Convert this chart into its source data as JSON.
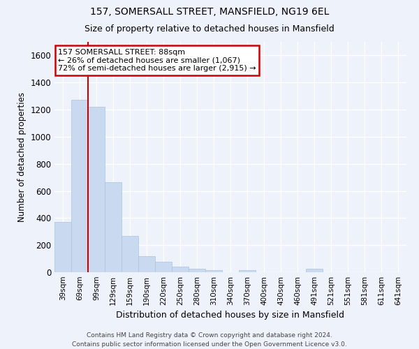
{
  "title": "157, SOMERSALL STREET, MANSFIELD, NG19 6EL",
  "subtitle": "Size of property relative to detached houses in Mansfield",
  "xlabel": "Distribution of detached houses by size in Mansfield",
  "ylabel": "Number of detached properties",
  "bar_color": "#c9daf0",
  "bar_edge_color": "#a8c4e0",
  "vline_color": "#cc0000",
  "vline_linewidth": 1.5,
  "vline_x": 1.5,
  "annotation_text": "157 SOMERSALL STREET: 88sqm\n← 26% of detached houses are smaller (1,067)\n72% of semi-detached houses are larger (2,915) →",
  "annotation_box_edgecolor": "#cc0000",
  "annotation_fill_color": "white",
  "categories": [
    "39sqm",
    "69sqm",
    "99sqm",
    "129sqm",
    "159sqm",
    "190sqm",
    "220sqm",
    "250sqm",
    "280sqm",
    "310sqm",
    "340sqm",
    "370sqm",
    "400sqm",
    "430sqm",
    "460sqm",
    "491sqm",
    "521sqm",
    "551sqm",
    "581sqm",
    "611sqm",
    "641sqm"
  ],
  "values": [
    370,
    1270,
    1220,
    665,
    270,
    120,
    75,
    40,
    25,
    15,
    0,
    15,
    0,
    0,
    0,
    25,
    0,
    0,
    0,
    0,
    0
  ],
  "ylim": [
    0,
    1700
  ],
  "yticks": [
    0,
    200,
    400,
    600,
    800,
    1000,
    1200,
    1400,
    1600
  ],
  "footer": "Contains HM Land Registry data © Crown copyright and database right 2024.\nContains public sector information licensed under the Open Government Licence v3.0.",
  "bg_color": "#edf2fb",
  "grid_color": "white"
}
